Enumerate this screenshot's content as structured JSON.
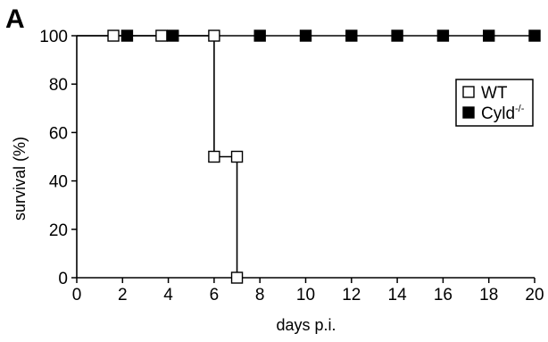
{
  "panel_label": "A",
  "chart_data": {
    "type": "line",
    "title": "",
    "xlabel": "days p.i.",
    "ylabel": "survival (%)",
    "xlim": [
      0,
      20
    ],
    "ylim": [
      0,
      100
    ],
    "xticks": [
      0,
      2,
      4,
      6,
      8,
      10,
      12,
      14,
      16,
      18,
      20
    ],
    "yticks": [
      0,
      20,
      40,
      60,
      80,
      100
    ],
    "xtick_labels": [
      "0",
      "2",
      "4",
      "6",
      "8",
      "10",
      "12",
      "14",
      "16",
      "18",
      "20"
    ],
    "ytick_labels": [
      "0",
      "20",
      "40",
      "60",
      "80",
      "100"
    ],
    "grid": false,
    "legend_position": "top-right",
    "series": [
      {
        "name": "WT",
        "marker": "open-square",
        "color": "#000000",
        "line_x": [
          0,
          6,
          6,
          7,
          7
        ],
        "line_y": [
          100,
          100,
          50,
          50,
          0
        ],
        "markers": [
          {
            "x": 1.6,
            "y": 100
          },
          {
            "x": 3.7,
            "y": 100
          },
          {
            "x": 6,
            "y": 100
          },
          {
            "x": 6,
            "y": 50
          },
          {
            "x": 7,
            "y": 50
          },
          {
            "x": 7,
            "y": 0
          }
        ]
      },
      {
        "name": "Cyld",
        "name_superscript": "-/-",
        "marker": "filled-square",
        "color": "#000000",
        "line_x": [
          0,
          20
        ],
        "line_y": [
          100,
          100
        ],
        "markers": [
          {
            "x": 2.2,
            "y": 100
          },
          {
            "x": 4.2,
            "y": 100
          },
          {
            "x": 8,
            "y": 100
          },
          {
            "x": 10,
            "y": 100
          },
          {
            "x": 12,
            "y": 100
          },
          {
            "x": 14,
            "y": 100
          },
          {
            "x": 16,
            "y": 100
          },
          {
            "x": 18,
            "y": 100
          },
          {
            "x": 20,
            "y": 100
          }
        ]
      }
    ]
  }
}
